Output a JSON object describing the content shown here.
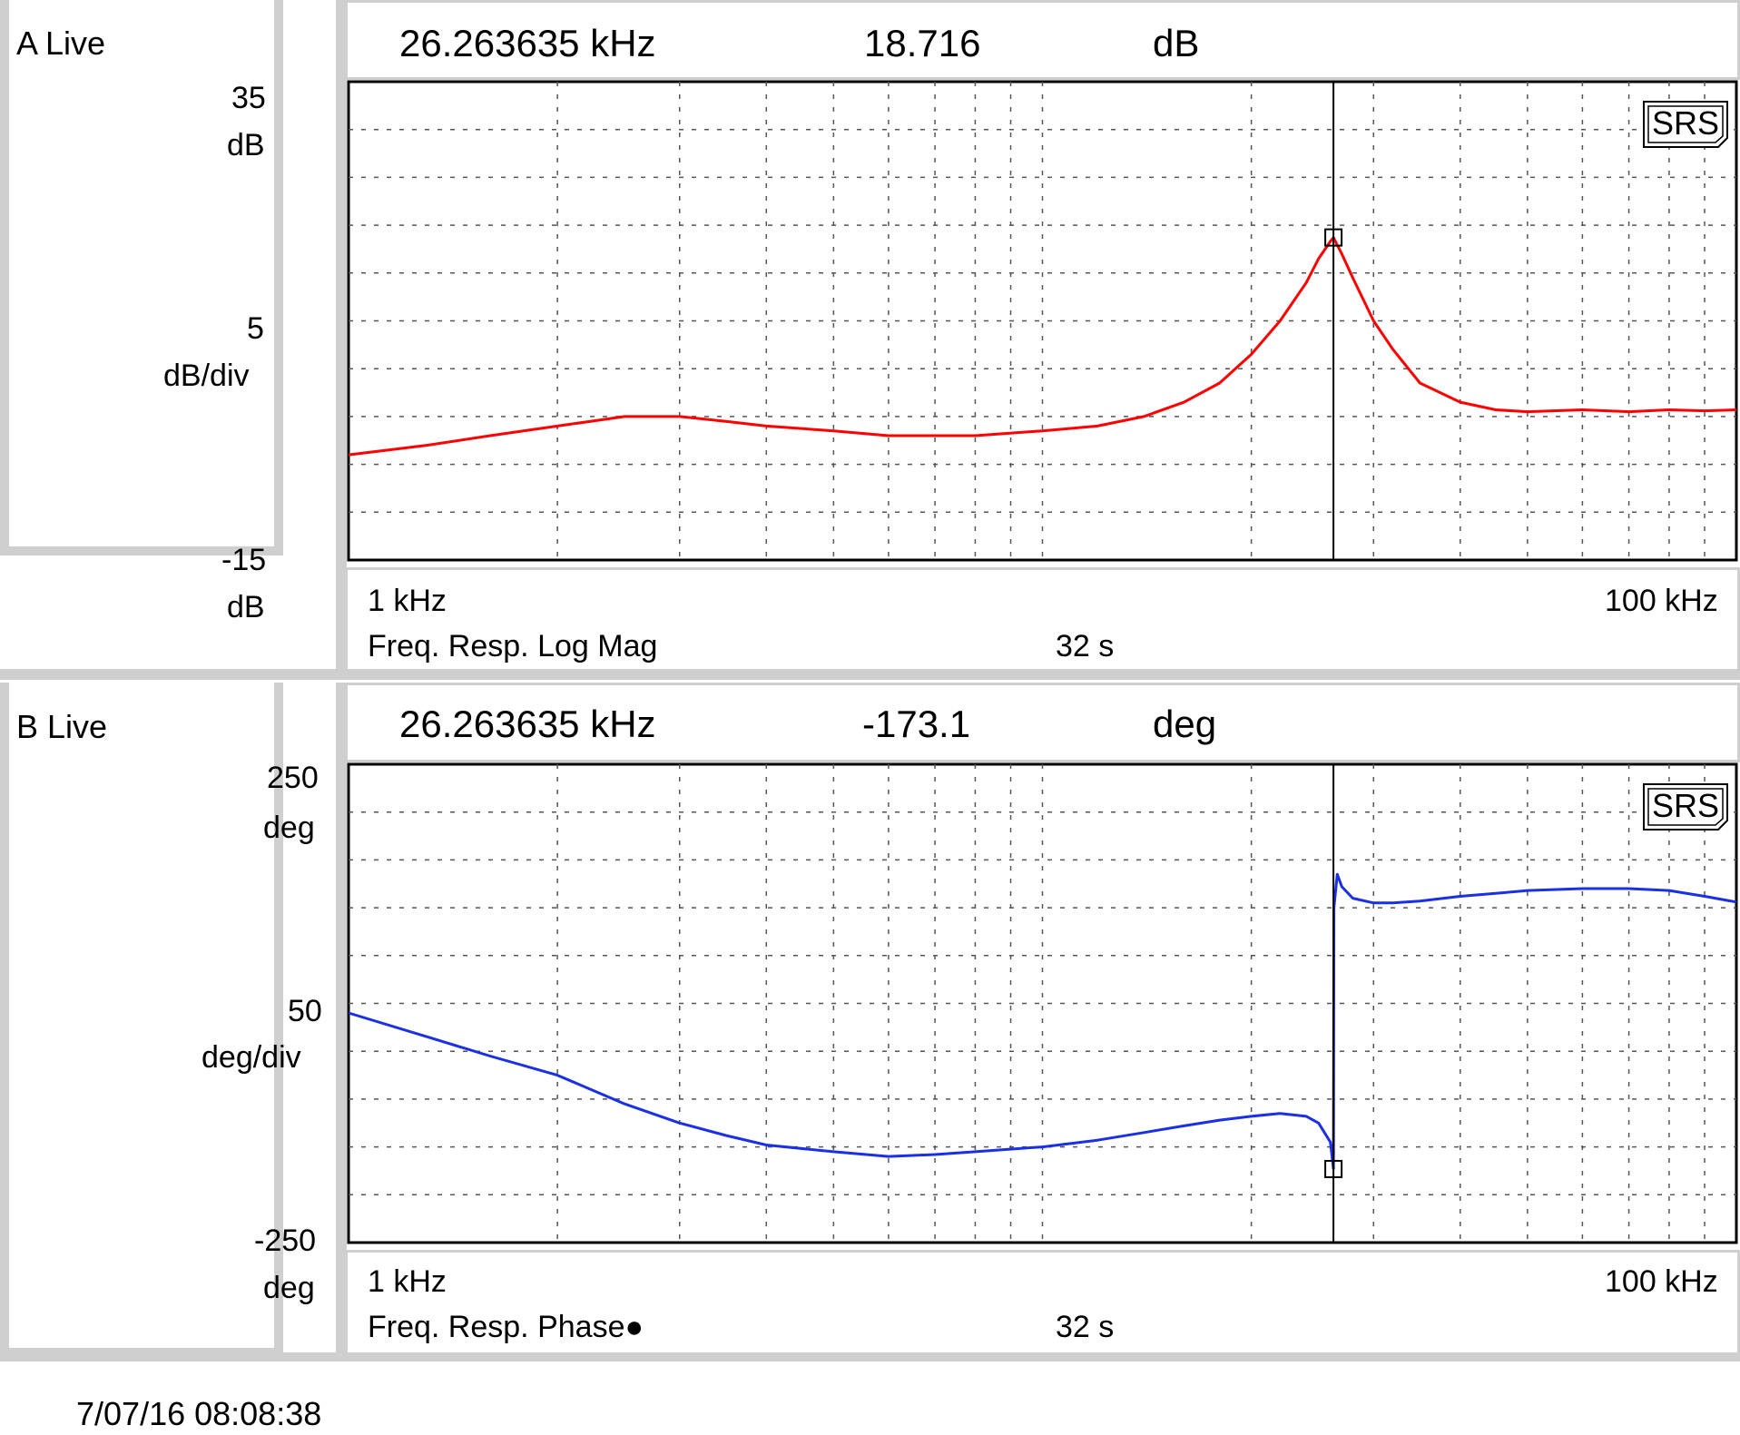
{
  "panels": [
    {
      "id": "A",
      "live_label": "A Live",
      "marker": {
        "freq": "26.263635 kHz",
        "value": "18.716",
        "unit": "dB"
      },
      "y_top": "35",
      "y_top_unit": "dB",
      "y_div": "5",
      "y_div_unit": "dB/div",
      "y_bottom": "-15",
      "y_bottom_unit": "dB",
      "x_start": "1 kHz",
      "x_end": "100 kHz",
      "measurement": "Freq. Resp. Log Mag",
      "time": "32 s",
      "badge": "SRS"
    },
    {
      "id": "B",
      "live_label": "B Live",
      "marker": {
        "freq": "26.263635 kHz",
        "value": "-173.1",
        "unit": "deg"
      },
      "y_top": "250",
      "y_top_unit": "deg",
      "y_div": "50",
      "y_div_unit": "deg/div",
      "y_bottom": "-250",
      "y_bottom_unit": "deg",
      "x_start": "1 kHz",
      "x_end": "100 kHz",
      "measurement": "Freq. Resp. Phase●",
      "time": "32 s",
      "badge": "SRS"
    }
  ],
  "timestamp": "7/07/16  08:08:38",
  "chart_data": [
    {
      "type": "line",
      "xscale": "log",
      "xlim": [
        1,
        100
      ],
      "ylim": [
        -15,
        35
      ],
      "grid": true,
      "color": "#ff0000",
      "marker_x": 26.263635,
      "marker_y": 18.716,
      "series": [
        {
          "x": [
            1,
            1.3,
            1.6,
            2,
            2.5,
            3,
            3.5,
            4,
            5,
            6,
            7,
            8,
            10,
            12,
            14,
            16,
            18,
            20,
            22,
            24,
            25,
            26,
            26.26,
            27,
            28,
            30,
            32,
            35,
            40,
            45,
            50,
            60,
            70,
            80,
            90,
            100
          ],
          "y": [
            -4,
            -3,
            -2,
            -1,
            0,
            0,
            -0.5,
            -1,
            -1.5,
            -2,
            -2,
            -2,
            -1.5,
            -1,
            0,
            1.5,
            3.5,
            6.5,
            10,
            14,
            16.5,
            18.3,
            18.7,
            17,
            14.5,
            10,
            7,
            3.5,
            1.5,
            0.7,
            0.5,
            0.7,
            0.5,
            0.7,
            0.6,
            0.7
          ]
        }
      ]
    },
    {
      "type": "line",
      "xscale": "log",
      "xlim": [
        1,
        100
      ],
      "ylim": [
        -250,
        250
      ],
      "grid": true,
      "color": "#1a30e6",
      "marker_x": 26.263635,
      "marker_y": -173.1,
      "series": [
        {
          "x": [
            1,
            1.3,
            1.6,
            2,
            2.5,
            3,
            3.5,
            4,
            5,
            6,
            7,
            8,
            10,
            12,
            14,
            16,
            18,
            20,
            22,
            24,
            25,
            26,
            26.26,
            26.3,
            26.6,
            27,
            28,
            30,
            32,
            35,
            40,
            45,
            50,
            60,
            70,
            80,
            90,
            100
          ],
          "y": [
            -10,
            -35,
            -55,
            -75,
            -105,
            -125,
            -138,
            -148,
            -155,
            -160,
            -158,
            -155,
            -150,
            -143,
            -135,
            -128,
            -122,
            -118,
            -115,
            -118,
            -125,
            -145,
            -173,
            100,
            135,
            122,
            110,
            105,
            105,
            107,
            112,
            115,
            118,
            120,
            120,
            118,
            112,
            106
          ]
        }
      ]
    }
  ]
}
